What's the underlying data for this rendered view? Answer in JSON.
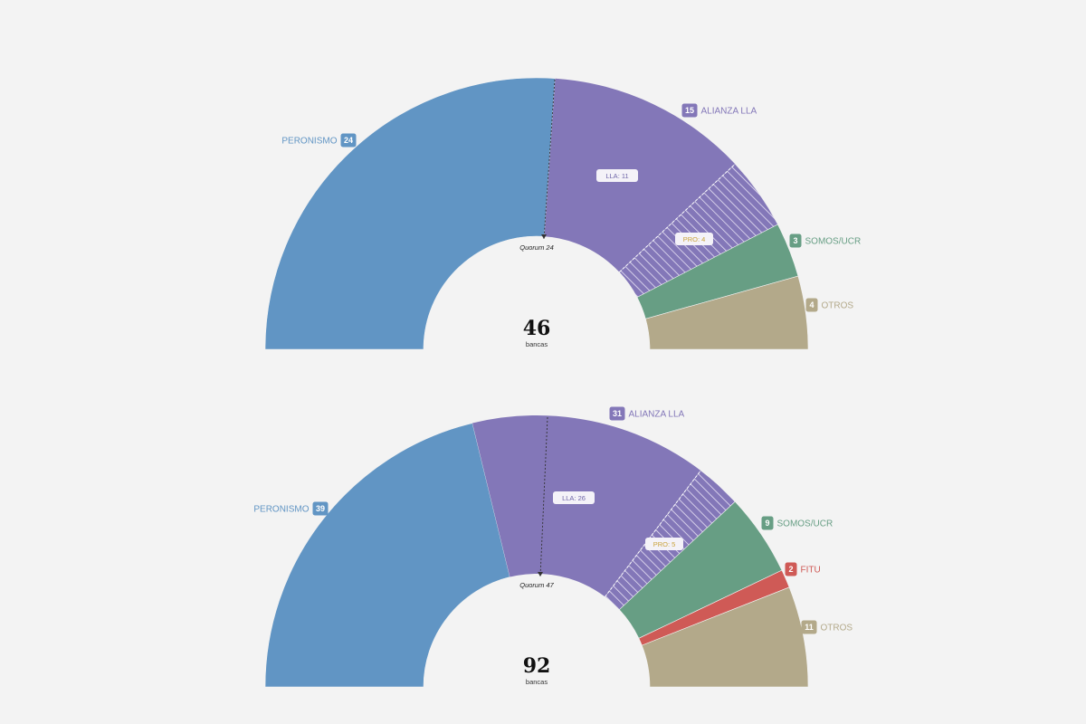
{
  "colors": {
    "background": "#f3f3f3",
    "peronismo": "#6195c4",
    "alianza_lla": "#8377b8",
    "somos_ucr": "#679e84",
    "fitu": "#cf5a56",
    "otros": "#b3a98a"
  },
  "chart_data": [
    {
      "type": "pie",
      "total": 46,
      "total_label": "46",
      "total_unit": "bancas",
      "quorum_label": "Quorum 24",
      "slices": [
        {
          "key": "peronismo",
          "label": "PERONISMO",
          "value": 24,
          "badge": "24",
          "color": "#6195c4"
        },
        {
          "key": "alianza_lla",
          "label": "ALIANZA LLA",
          "value": 15,
          "badge": "15",
          "color": "#8377b8",
          "subgroups": [
            {
              "label": "LLA: 11",
              "value": 11,
              "pattern": "solid"
            },
            {
              "label": "PRO: 4",
              "value": 4,
              "pattern": "hatched"
            }
          ]
        },
        {
          "key": "somos_ucr",
          "label": "SOMOS/UCR",
          "value": 3,
          "badge": "3",
          "color": "#679e84"
        },
        {
          "key": "otros",
          "label": "OTROS",
          "value": 4,
          "badge": "4",
          "color": "#b3a98a"
        }
      ]
    },
    {
      "type": "pie",
      "total": 92,
      "total_label": "92",
      "total_unit": "bancas",
      "quorum_label": "Quorum 47",
      "slices": [
        {
          "key": "peronismo",
          "label": "PERONISMO",
          "value": 39,
          "badge": "39",
          "color": "#6195c4"
        },
        {
          "key": "alianza_lla",
          "label": "ALIANZA LLA",
          "value": 31,
          "badge": "31",
          "color": "#8377b8",
          "subgroups": [
            {
              "label": "LLA: 26",
              "value": 26,
              "pattern": "solid"
            },
            {
              "label": "PRO: 5",
              "value": 5,
              "pattern": "hatched"
            }
          ]
        },
        {
          "key": "somos_ucr",
          "label": "SOMOS/UCR",
          "value": 9,
          "badge": "9",
          "color": "#679e84"
        },
        {
          "key": "fitu",
          "label": "FITU",
          "value": 2,
          "badge": "2",
          "color": "#cf5a56"
        },
        {
          "key": "otros",
          "label": "OTROS",
          "value": 11,
          "badge": "11",
          "color": "#b3a98a"
        }
      ]
    }
  ]
}
